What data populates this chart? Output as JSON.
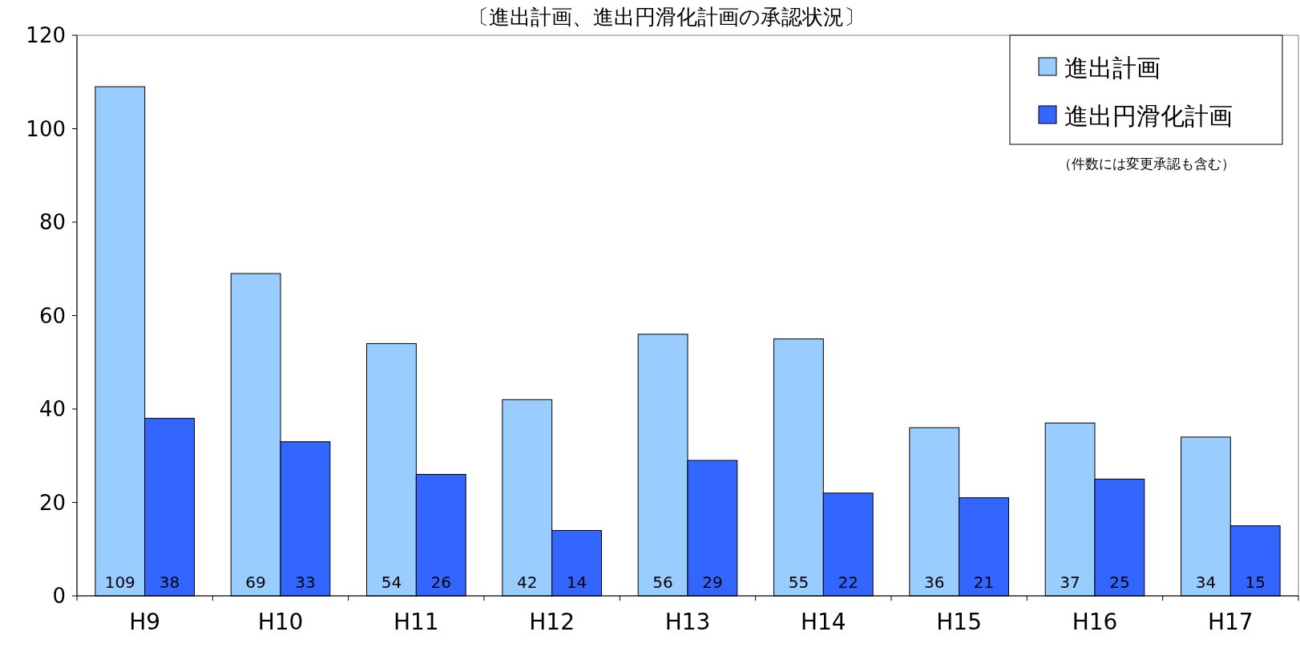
{
  "chart_data": {
    "type": "bar",
    "title": "〔進出計画、進出円滑化計画の承認状況〕",
    "categories": [
      "H9",
      "H10",
      "H11",
      "H12",
      "H13",
      "H14",
      "H15",
      "H16",
      "H17"
    ],
    "series": [
      {
        "name": "進出計画",
        "color": "#99ccff",
        "values": [
          109,
          69,
          54,
          42,
          56,
          55,
          36,
          37,
          34
        ]
      },
      {
        "name": "進出円滑化計画",
        "color": "#3366ff",
        "values": [
          38,
          33,
          26,
          14,
          29,
          22,
          21,
          25,
          15
        ]
      }
    ],
    "ylim": [
      0,
      120
    ],
    "yticks": [
      0,
      20,
      40,
      60,
      80,
      100,
      120
    ],
    "grid": false,
    "legend": "top right",
    "data_labels": true,
    "annotations": [
      "（件数には変更承認も含む）"
    ]
  }
}
